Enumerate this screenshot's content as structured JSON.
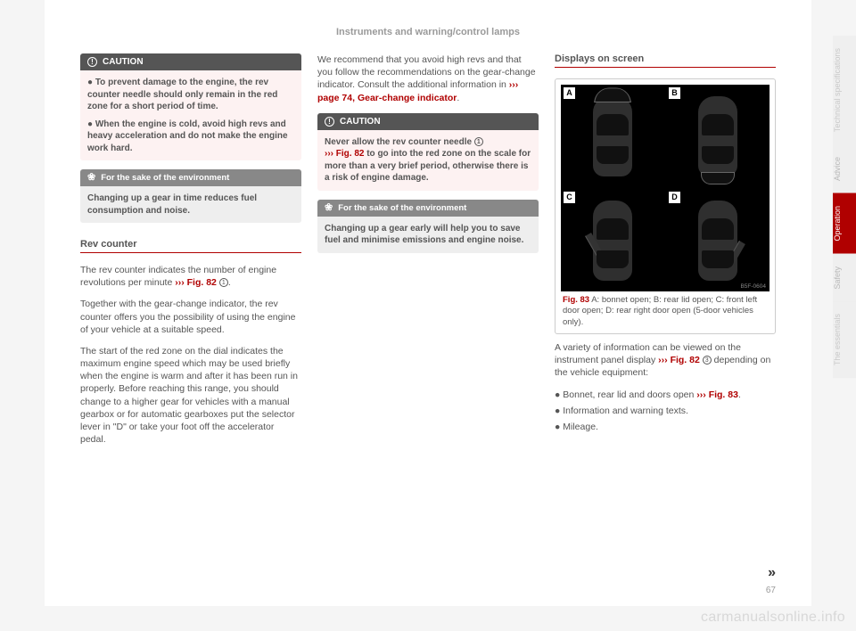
{
  "header": {
    "title": "Instruments and warning/control lamps"
  },
  "col1": {
    "caution_label": "CAUTION",
    "caution_body": [
      "● To prevent damage to the engine, the rev counter needle should only remain in the red zone for a short period of time.",
      "● When the engine is cold, avoid high revs and heavy acceleration and do not make the engine work hard."
    ],
    "env_label": "For the sake of the environment",
    "env_body": "Changing up a gear in time reduces fuel consumption and noise.",
    "section_title": "Rev counter",
    "p1a": "The rev counter indicates the number of engine revolutions per minute ",
    "p1_ref": "››› Fig. 82",
    "p1_num": "1",
    "p1b": ".",
    "p2": "Together with the gear-change indicator, the rev counter offers you the possibility of using the engine of your vehicle at a suitable speed.",
    "p3": "The start of the red zone on the dial indicates the maximum engine speed which may be used briefly when the engine is warm and after it has been run in properly. Before reaching this range, you should change to a higher gear for vehicles with a manual gearbox or for automatic gearboxes put the selector lever in \"D\" or take your foot off the accelerator pedal."
  },
  "col2": {
    "intro_a": "We recommend that you avoid high revs and that you follow the recommendations on the gear-change indicator. Consult the additional information in ",
    "intro_ref": "››› page 74, Gear-change indicator",
    "intro_b": ".",
    "caution_label": "CAUTION",
    "caution_a": "Never allow the rev counter needle ",
    "caution_num": "1",
    "caution_ref": "››› Fig. 82",
    "caution_b": " to go into the red zone on the scale for more than a very brief period, otherwise there is a risk of engine damage.",
    "env_label": "For the sake of the environment",
    "env_body": "Changing up a gear early will help you to save fuel and minimise emissions and engine noise."
  },
  "col3": {
    "section_title": "Displays on screen",
    "panels": {
      "a": "A",
      "b": "B",
      "c": "C",
      "d": "D"
    },
    "imgref": "B5F-0604",
    "caption_ref": "Fig. 83",
    "caption_txt": "  A: bonnet open; B: rear lid open; C: front left door open; D: rear right door open (5-door vehicles only).",
    "p1a": "A variety of information can be viewed on the instrument panel display ",
    "p1_ref": "››› Fig. 82",
    "p1_num": "3",
    "p1b": " depending on the vehicle equipment:",
    "b1a": "● Bonnet, rear lid and doors open ",
    "b1_ref": "››› Fig. 83",
    "b1b": ".",
    "b2": "● Information and warning texts.",
    "b3": "● Mileage."
  },
  "tabs": {
    "t1": "Technical specifications",
    "t2": "Advice",
    "t3": "Operation",
    "t4": "Safety",
    "t5": "The essentials"
  },
  "colors": {
    "accent": "#b00000",
    "text": "#555555",
    "header_text": "#9a9a9a"
  },
  "page_number": "67",
  "continuation": "»",
  "watermark": "carmanualsonline.info"
}
